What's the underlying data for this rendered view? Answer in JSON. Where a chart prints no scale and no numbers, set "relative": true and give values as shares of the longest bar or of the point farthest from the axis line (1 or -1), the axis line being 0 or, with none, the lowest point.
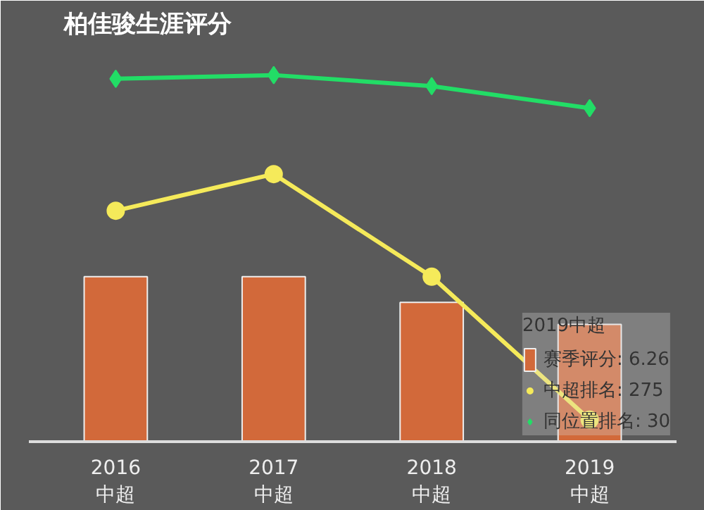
{
  "chart_data": {
    "type": "bar",
    "title": "柏佳骏生涯评分",
    "relative": true,
    "categories": [
      "2016\n中超",
      "2017\n中超",
      "2018\n中超",
      "2019\n中超"
    ],
    "legend": "bottom right",
    "legend_title": "2019中超",
    "grid": false,
    "series": [
      {
        "name": "赛季评分: 6.26",
        "color": "#d2693a",
        "values": [
          0.45,
          0.45,
          0.38,
          0.32
        ]
      },
      {
        "name": "中超排名: 275",
        "type": "line",
        "color": "#f5ea5a",
        "marker": "circle",
        "values": [
          0.63,
          0.73,
          0.45,
          0.06
        ]
      },
      {
        "name": "同位置排名: 30",
        "type": "line",
        "color": "#22dd66",
        "marker": "diamond",
        "values": [
          0.99,
          1.0,
          0.97,
          0.91
        ]
      }
    ]
  }
}
